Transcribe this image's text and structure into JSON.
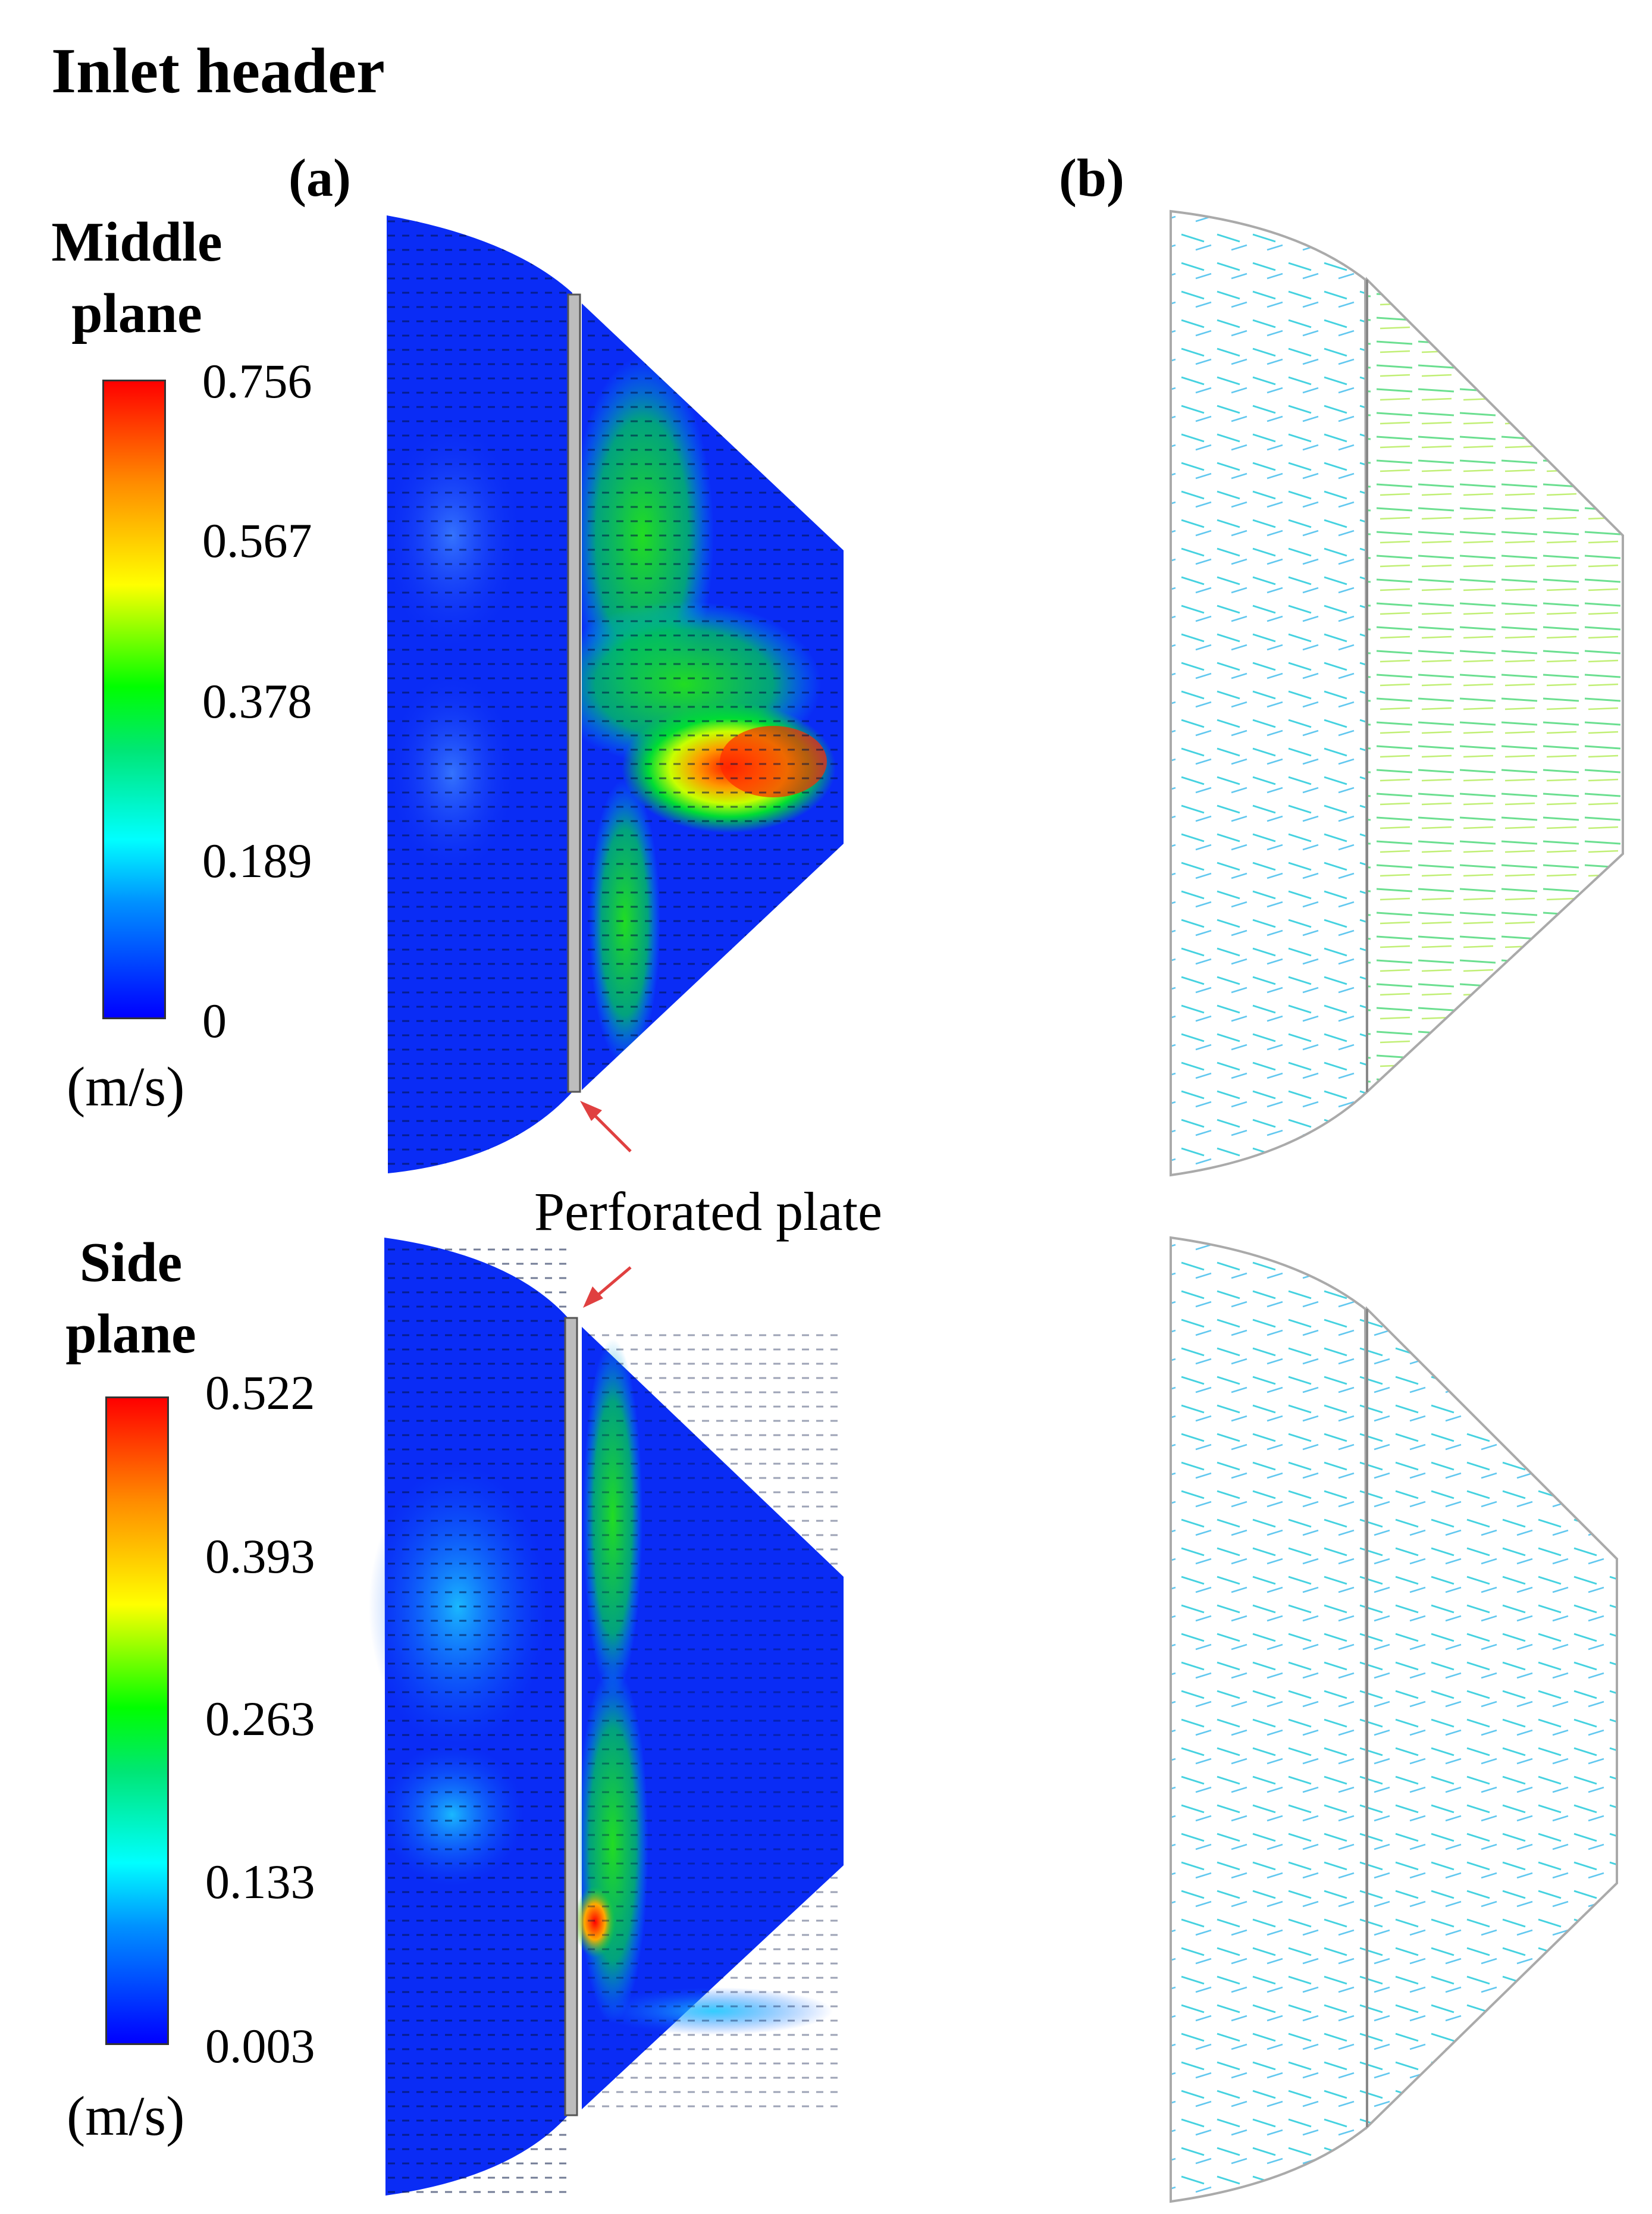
{
  "title": "Inlet header",
  "panels": {
    "a": "(a)",
    "b": "(b)"
  },
  "middle": {
    "label_line1": "Middle",
    "label_line2": "plane",
    "colorbar_ticks": [
      "0.756",
      "0.567",
      "0.378",
      "0.189",
      "0"
    ],
    "unit": "(m/s)"
  },
  "side": {
    "label_line1": "Side",
    "label_line2": "plane",
    "colorbar_ticks": [
      "0.522",
      "0.393",
      "0.263",
      "0.133",
      "0.003"
    ],
    "unit": "(m/s)"
  },
  "annotation": "Perforated plate",
  "colors": {
    "field_base": "#0a2cf5",
    "plate": "#bdbdbd",
    "arrow_red": "#e04040",
    "outline_gray": "#aaaaaa"
  }
}
